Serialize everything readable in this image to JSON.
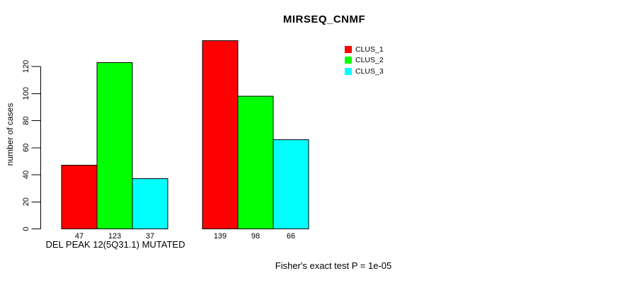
{
  "chart_data": {
    "type": "bar",
    "title": "MIRSEQ_CNMF",
    "xlabel": "DEL PEAK 12(5Q31.1) MUTATED",
    "ylabel": "number of cases",
    "annotation": "Fisher's exact test P = 1e-05",
    "ylim": [
      0,
      120
    ],
    "yticks": [
      0,
      20,
      40,
      60,
      80,
      100,
      120
    ],
    "group_count": 2,
    "series": [
      {
        "name": "CLUS_1",
        "color": "#ff0000",
        "values": [
          47,
          139
        ]
      },
      {
        "name": "CLUS_2",
        "color": "#00ff00",
        "values": [
          123,
          98
        ]
      },
      {
        "name": "CLUS_3",
        "color": "#00ffff",
        "values": [
          37,
          66
        ]
      }
    ],
    "bar_value_labels": [
      [
        47,
        123,
        37
      ],
      [
        139,
        98,
        66
      ]
    ],
    "legend_position": "top-right",
    "grid": false,
    "bar_border_color": "#000000",
    "text_color": "#000000",
    "background_color": "#ffffff"
  }
}
